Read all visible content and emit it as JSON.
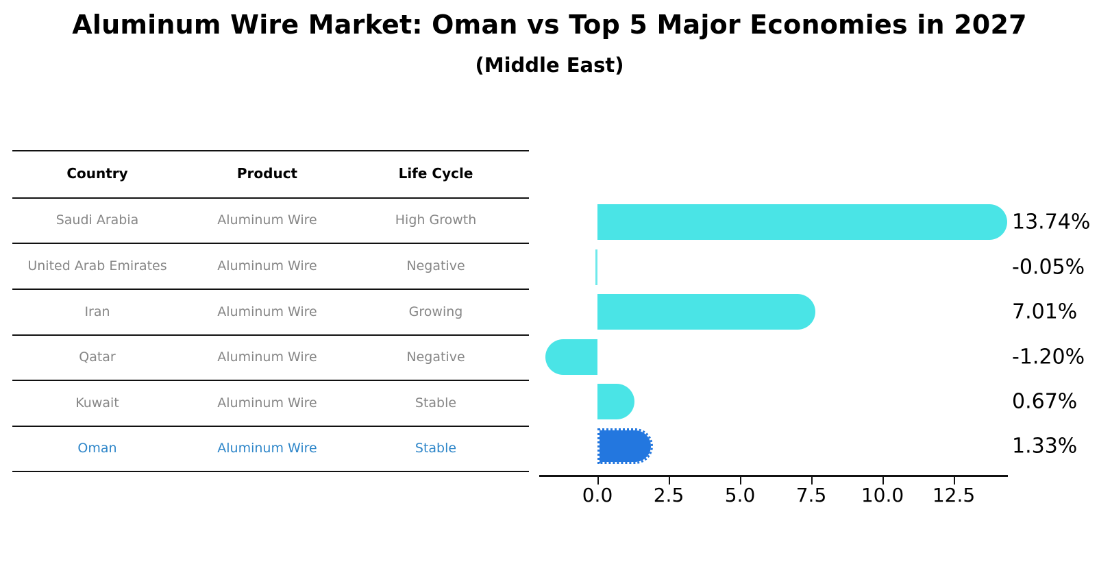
{
  "title": "Aluminum Wire Market: Oman vs Top 5 Major Economies in 2027",
  "subtitle": "(Middle East)",
  "table": {
    "headers": [
      "Country",
      "Product",
      "Life Cycle"
    ],
    "rows": [
      {
        "country": "Saudi Arabia",
        "product": "Aluminum Wire",
        "life_cycle": "High Growth"
      },
      {
        "country": "United Arab Emirates",
        "product": "Aluminum Wire",
        "life_cycle": "Negative"
      },
      {
        "country": "Iran",
        "product": "Aluminum Wire",
        "life_cycle": "Growing"
      },
      {
        "country": "Qatar",
        "product": "Aluminum Wire",
        "life_cycle": "Negative"
      },
      {
        "country": "Kuwait",
        "product": "Aluminum Wire",
        "life_cycle": "Stable"
      },
      {
        "country": "Oman",
        "product": "Aluminum Wire",
        "life_cycle": "Stable"
      }
    ],
    "highlighted_row": "Oman"
  },
  "chart_data": {
    "type": "bar",
    "orientation": "horizontal",
    "title": "Aluminum Wire Market: Oman vs Top 5 Major Economies in 2027",
    "subtitle": "(Middle East)",
    "categories": [
      "Saudi Arabia",
      "United Arab Emirates",
      "Iran",
      "Qatar",
      "Kuwait",
      "Oman"
    ],
    "values": [
      13.74,
      -0.05,
      7.01,
      -1.2,
      0.67,
      1.33
    ],
    "value_labels": [
      "13.74%",
      "-0.05%",
      "7.01%",
      "-1.20%",
      "0.67%",
      "1.33%"
    ],
    "x_tick_labels": [
      "0.0",
      "2.5",
      "5.0",
      "7.5",
      "10.0",
      "12.5"
    ],
    "x_tick_values": [
      0,
      2.5,
      5,
      7.5,
      10,
      12.5
    ],
    "xlim": [
      -2.05,
      14.4
    ],
    "highlight_index": 5,
    "grid": false,
    "legend": "none"
  },
  "colors": {
    "bar": "#4AE4E6",
    "highlight_bar": "#2377DF",
    "highlight_text": "#2E86C9",
    "table_text": "#868686",
    "header_text": "#000000",
    "axis": "#111111",
    "background": "#ffffff"
  }
}
